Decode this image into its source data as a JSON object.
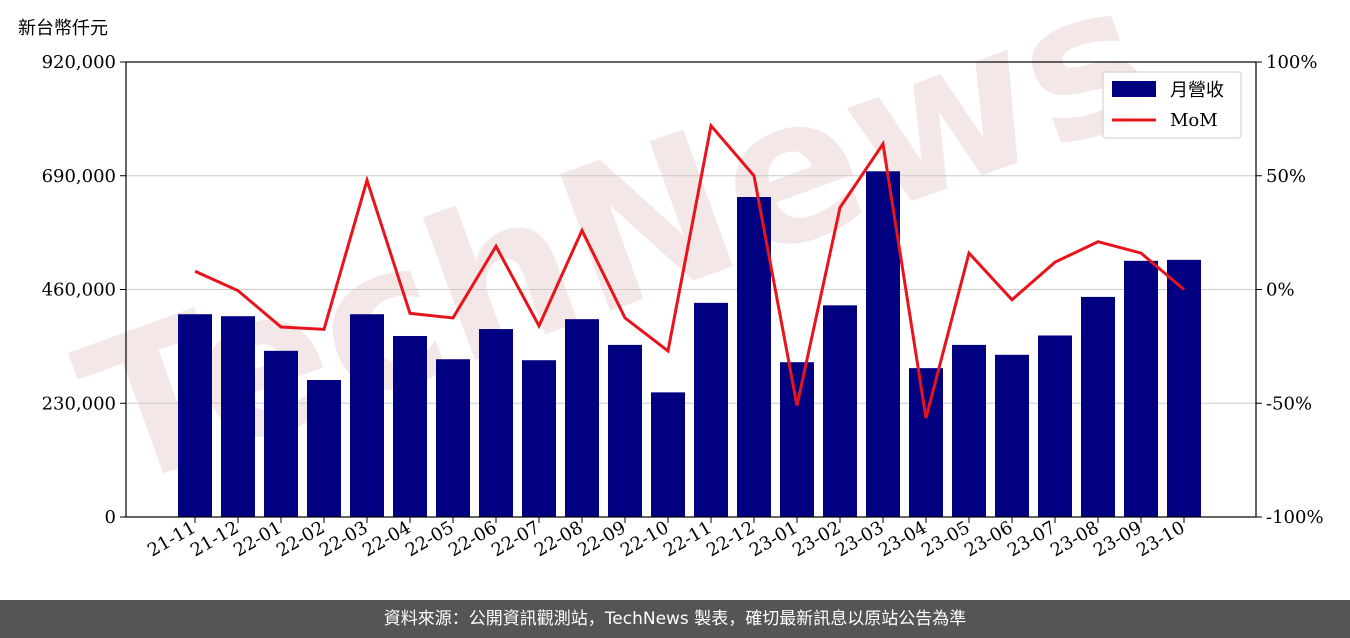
{
  "chart_data": {
    "type": "bar",
    "ylabel": "新台幣仟元",
    "categories": [
      "21-11",
      "21-12",
      "22-01",
      "22-02",
      "22-03",
      "22-04",
      "22-05",
      "22-06",
      "22-07",
      "22-08",
      "22-09",
      "22-10",
      "22-11",
      "22-12",
      "23-01",
      "23-02",
      "23-03",
      "23-04",
      "23-05",
      "23-06",
      "23-07",
      "23-08",
      "23-09",
      "23-10"
    ],
    "series": [
      {
        "name": "月營收",
        "kind": "bar",
        "color": "#000080",
        "values": [
          410000,
          406000,
          336000,
          277000,
          410000,
          366000,
          319000,
          380000,
          317000,
          400000,
          348000,
          252000,
          433000,
          647000,
          313000,
          428000,
          699000,
          301000,
          348000,
          328000,
          367000,
          445000,
          518000,
          520000
        ]
      },
      {
        "name": "MoM",
        "kind": "line",
        "color": "#e8141c",
        "unit": "%",
        "values": [
          8,
          -0.5,
          -16.5,
          -17.5,
          48,
          -10.5,
          -12.5,
          19,
          -16,
          26,
          -12.5,
          -27,
          72,
          50,
          -51,
          36,
          64,
          -56.5,
          16,
          -4.5,
          12,
          21,
          16,
          0
        ]
      }
    ],
    "ylim": [
      0,
      920000
    ],
    "yticks": [
      "0",
      "230,000",
      "460,000",
      "690,000",
      "920,000"
    ],
    "y2lim": [
      -100,
      100
    ],
    "y2ticks": [
      "-100%",
      "-50%",
      "0%",
      "50%",
      "100%"
    ],
    "legend_position": "top-right",
    "watermark": "TechNews"
  },
  "footer": {
    "text": "資料來源：公開資訊觀測站，TechNews 製表，確切最新訊息以原站公告為準"
  },
  "colors": {
    "bar": "#000080",
    "line": "#e8141c",
    "footer_bg": "#555555"
  }
}
